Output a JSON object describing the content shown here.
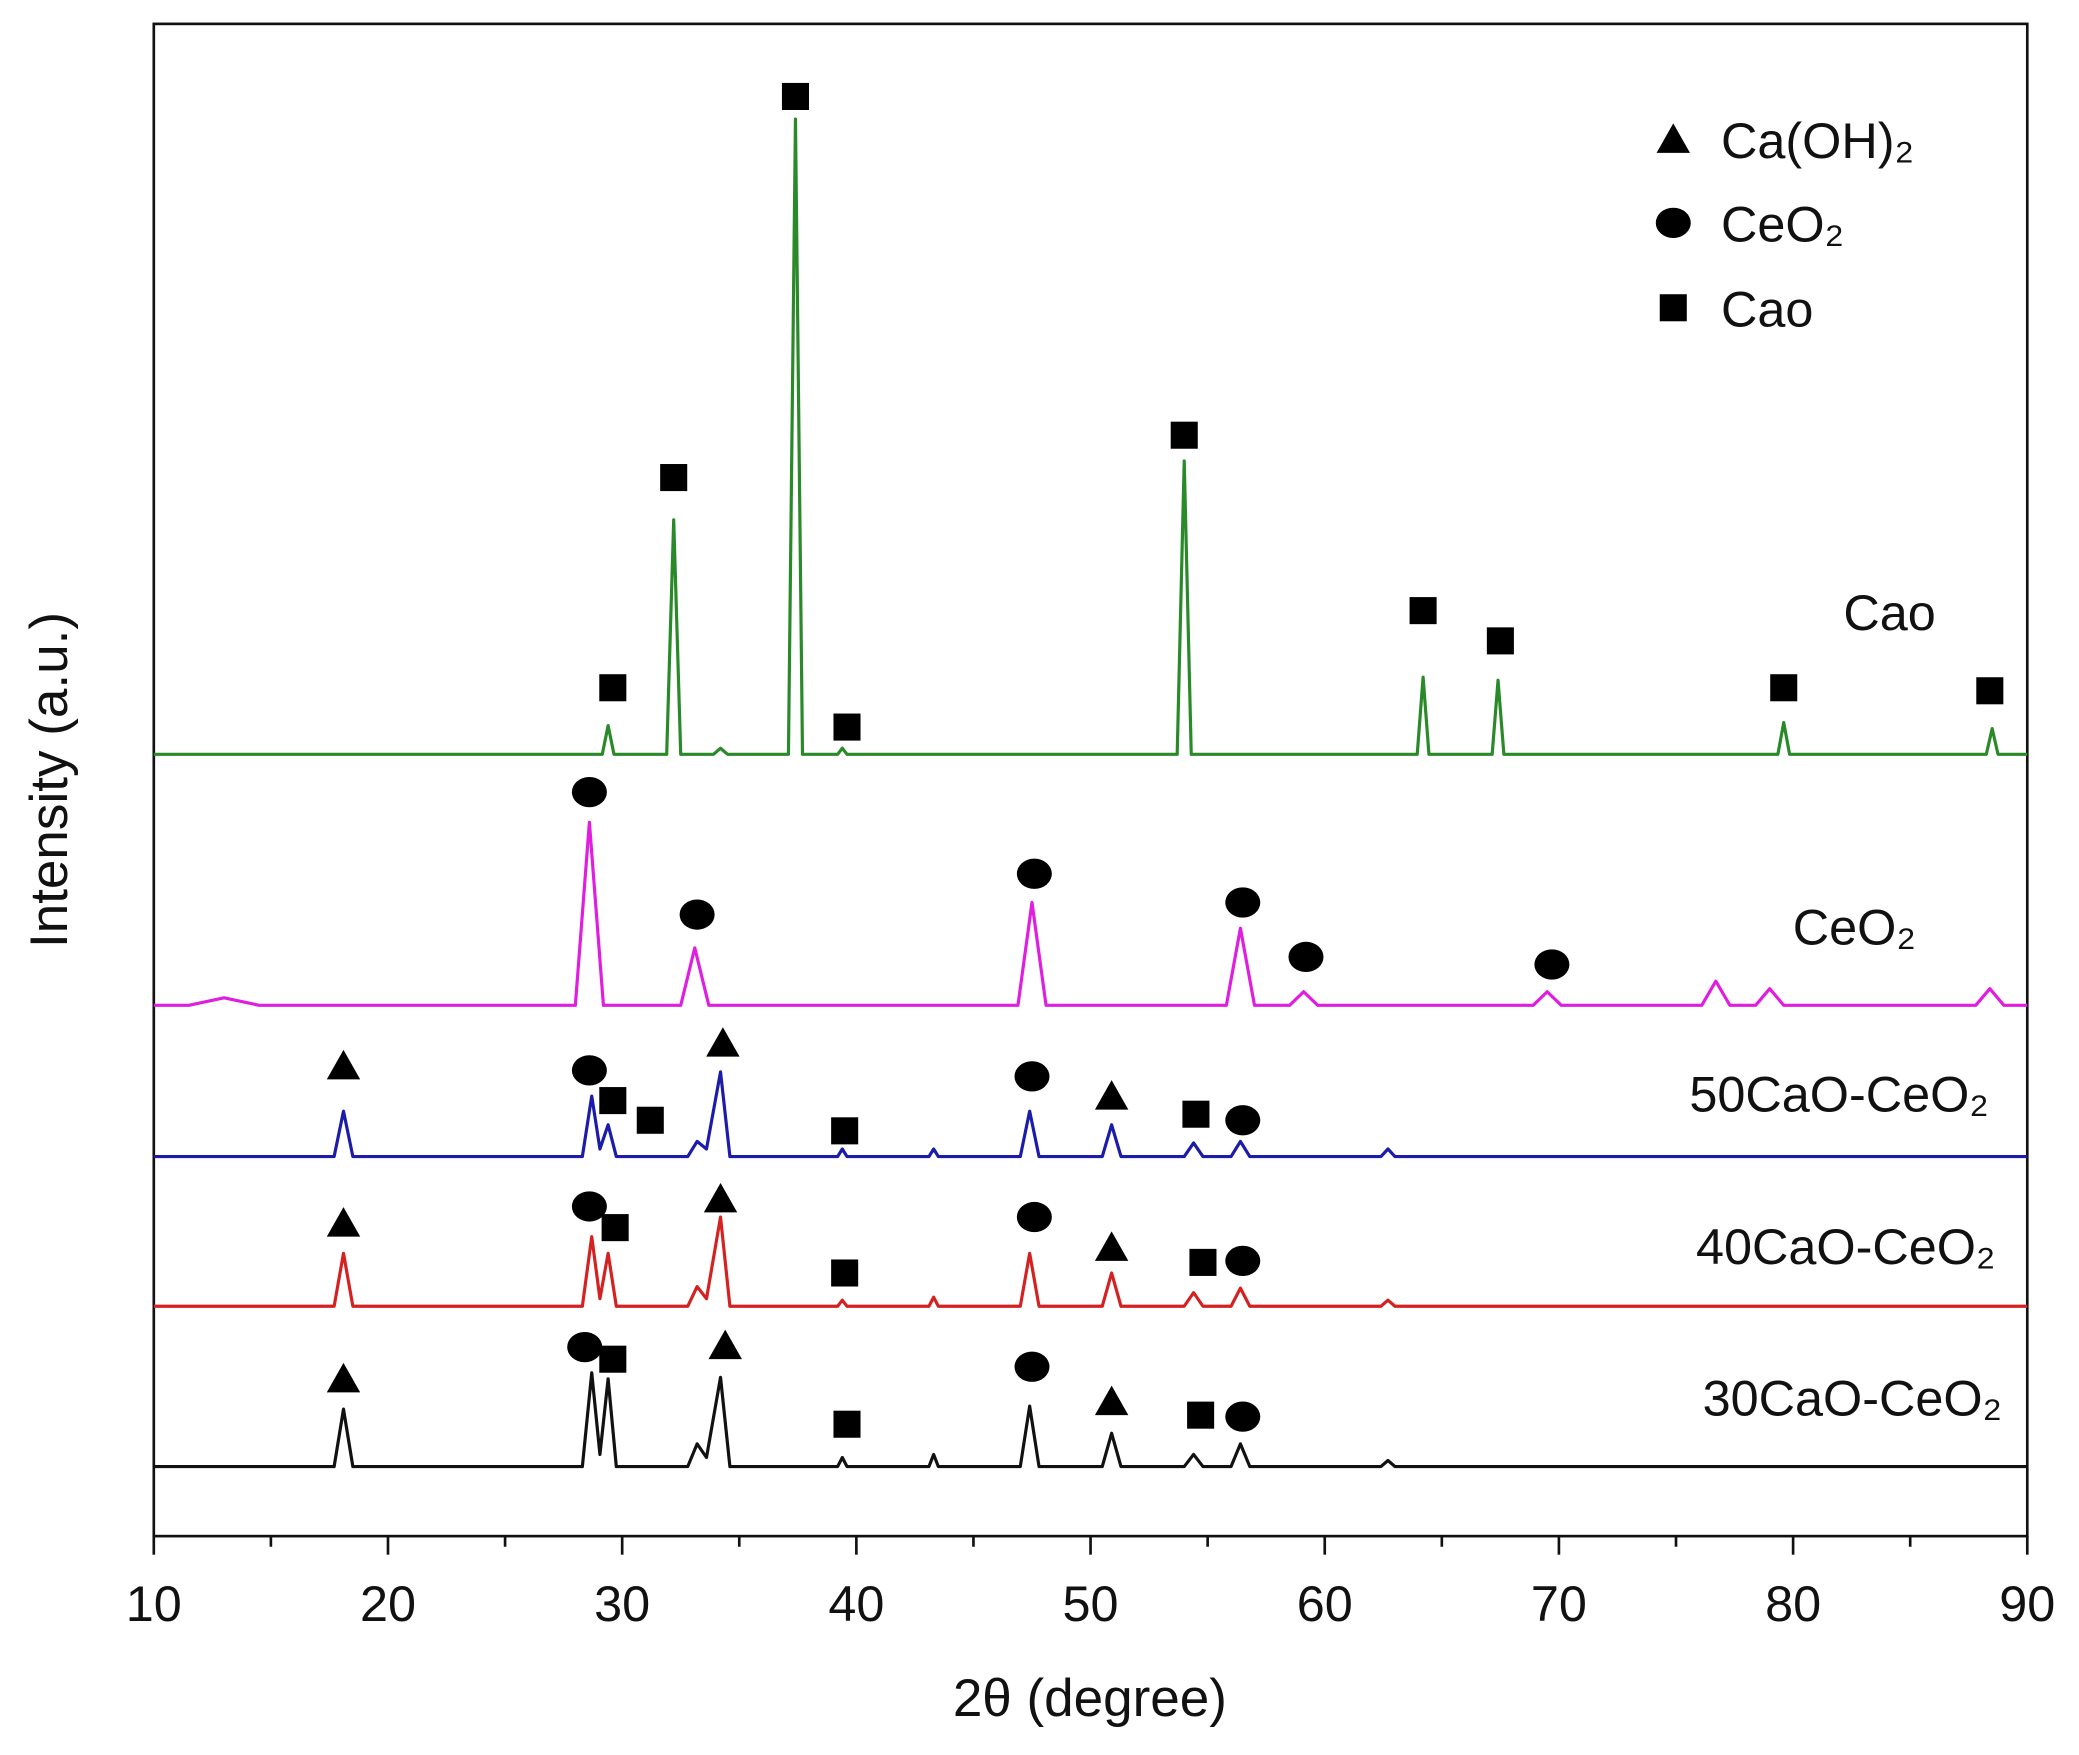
{
  "chart_data": {
    "type": "line",
    "xlabel": "2θ (degree)",
    "ylabel": "Intensity (a.u.)",
    "xlim": [
      10,
      90
    ],
    "xticks": [
      10,
      20,
      30,
      40,
      50,
      60,
      70,
      80,
      90
    ],
    "xminorticks": [
      15,
      25,
      35,
      45,
      55,
      65,
      75,
      85
    ],
    "ylim": [
      0,
      100
    ],
    "series": [
      {
        "name": "Cao",
        "color": "#2a8a2a",
        "x": [
          10,
          29.15,
          29.4,
          29.65,
          31.9,
          32.2,
          32.5,
          33.9,
          34.2,
          34.5,
          37.1,
          37.4,
          37.7,
          39.2,
          39.4,
          39.6,
          53.7,
          54,
          54.3,
          63.95,
          64.2,
          64.45,
          67.15,
          67.4,
          67.65,
          79.35,
          79.6,
          79.85,
          88.25,
          88.5,
          88.75,
          90
        ],
        "values": [
          51.7,
          51.7,
          53.6,
          51.7,
          51.7,
          67.2,
          51.7,
          51.7,
          52.1,
          51.7,
          51.7,
          93.7,
          51.7,
          51.7,
          52.1,
          51.7,
          51.7,
          71.1,
          51.7,
          51.7,
          56.8,
          51.7,
          51.7,
          56.6,
          51.7,
          51.7,
          53.8,
          51.7,
          51.7,
          53.4,
          51.7,
          51.7
        ]
      },
      {
        "name": "CeO₂",
        "color": "#e01ee0",
        "x": [
          10,
          11.5,
          13,
          14.5,
          28.0,
          28.6,
          29.2,
          32.5,
          33.1,
          33.7,
          46.9,
          47.5,
          48.1,
          55.8,
          56.4,
          57.0,
          58.5,
          59.1,
          59.7,
          68.9,
          69.5,
          70.1,
          76.1,
          76.7,
          77.3,
          78.4,
          79.0,
          79.6,
          87.8,
          88.4,
          89.0,
          90
        ],
        "values": [
          35.1,
          35.1,
          35.6,
          35.1,
          35.1,
          47.2,
          35.1,
          35.1,
          38.9,
          35.1,
          35.1,
          41.9,
          35.1,
          35.1,
          40.2,
          35.1,
          35.1,
          36.0,
          35.1,
          35.1,
          36.0,
          35.1,
          35.1,
          36.7,
          35.1,
          35.1,
          36.2,
          35.1,
          35.1,
          36.2,
          35.1,
          35.1
        ]
      },
      {
        "name": "50CaO-CeO₂",
        "color": "#1c1caa",
        "x": [
          10,
          17.7,
          18.1,
          18.5,
          28.3,
          28.7,
          29.05,
          29.4,
          29.75,
          32.8,
          33.2,
          33.6,
          34.2,
          34.6,
          39.2,
          39.4,
          39.6,
          43.1,
          43.3,
          43.5,
          47.0,
          47.4,
          47.8,
          50.5,
          50.9,
          51.3,
          54.0,
          54.4,
          54.8,
          56.0,
          56.4,
          56.8,
          62.4,
          62.7,
          63.0,
          90
        ],
        "values": [
          25.1,
          25.1,
          28.1,
          25.1,
          25.1,
          29.1,
          25.6,
          27.2,
          25.1,
          25.1,
          26.1,
          25.6,
          30.7,
          25.1,
          25.1,
          25.6,
          25.1,
          25.1,
          25.6,
          25.1,
          25.1,
          28.1,
          25.1,
          25.1,
          27.2,
          25.1,
          25.1,
          26.0,
          25.1,
          25.1,
          26.1,
          25.1,
          25.1,
          25.6,
          25.1,
          25.1
        ]
      },
      {
        "name": "40CaO-CeO₂",
        "color": "#d42222",
        "x": [
          10,
          17.7,
          18.1,
          18.5,
          28.3,
          28.7,
          29.05,
          29.4,
          29.75,
          32.8,
          33.2,
          33.6,
          34.2,
          34.6,
          39.2,
          39.4,
          39.6,
          43.1,
          43.3,
          43.5,
          47.0,
          47.4,
          47.8,
          50.5,
          50.9,
          51.3,
          54.0,
          54.4,
          54.8,
          56.0,
          56.4,
          56.8,
          62.4,
          62.7,
          63.0,
          90
        ],
        "values": [
          15.2,
          15.2,
          18.7,
          15.2,
          15.2,
          19.8,
          15.7,
          18.7,
          15.2,
          15.2,
          16.5,
          15.7,
          21.1,
          15.2,
          15.2,
          15.6,
          15.2,
          15.2,
          15.8,
          15.2,
          15.2,
          18.7,
          15.2,
          15.2,
          17.4,
          15.2,
          15.2,
          16.1,
          15.2,
          15.2,
          16.4,
          15.2,
          15.2,
          15.6,
          15.2,
          15.2
        ]
      },
      {
        "name": "30CaO-CeO₂",
        "color": "#111111",
        "x": [
          10,
          17.7,
          18.1,
          18.5,
          28.3,
          28.7,
          29.05,
          29.4,
          29.75,
          32.8,
          33.2,
          33.6,
          34.2,
          34.6,
          39.2,
          39.4,
          39.6,
          43.1,
          43.3,
          43.5,
          47.0,
          47.4,
          47.8,
          50.5,
          50.9,
          51.3,
          54.0,
          54.4,
          54.8,
          56.0,
          56.4,
          56.8,
          62.4,
          62.7,
          63.0,
          90
        ],
        "values": [
          4.6,
          4.6,
          8.4,
          4.6,
          4.6,
          10.8,
          5.4,
          10.4,
          4.6,
          4.6,
          6.1,
          5.2,
          10.5,
          4.6,
          4.6,
          5.2,
          4.6,
          4.6,
          5.4,
          4.6,
          4.6,
          8.6,
          4.6,
          4.6,
          6.8,
          4.6,
          4.6,
          5.4,
          4.6,
          4.6,
          6.1,
          4.6,
          4.6,
          5.0,
          4.6,
          4.6
        ]
      }
    ],
    "phases": [
      {
        "name": "Ca(OH)₂",
        "marker": "triangle"
      },
      {
        "name": "CeO₂",
        "marker": "circle"
      },
      {
        "name": "Cao",
        "marker": "square"
      }
    ],
    "markers": [
      {
        "phase": 2,
        "x": 29.6,
        "y": 56.1
      },
      {
        "phase": 2,
        "x": 32.2,
        "y": 70.0
      },
      {
        "phase": 2,
        "x": 37.4,
        "y": 95.2
      },
      {
        "phase": 2,
        "x": 39.6,
        "y": 53.5
      },
      {
        "phase": 2,
        "x": 54,
        "y": 72.8
      },
      {
        "phase": 2,
        "x": 64.2,
        "y": 61.2
      },
      {
        "phase": 2,
        "x": 67.5,
        "y": 59.2
      },
      {
        "phase": 2,
        "x": 79.6,
        "y": 56.1
      },
      {
        "phase": 2,
        "x": 88.4,
        "y": 55.9
      },
      {
        "phase": 1,
        "x": 28.6,
        "y": 49.2
      },
      {
        "phase": 1,
        "x": 33.2,
        "y": 41.1
      },
      {
        "phase": 1,
        "x": 47.6,
        "y": 43.8
      },
      {
        "phase": 1,
        "x": 56.5,
        "y": 41.9
      },
      {
        "phase": 1,
        "x": 59.2,
        "y": 38.3
      },
      {
        "phase": 1,
        "x": 69.7,
        "y": 37.8
      },
      {
        "phase": 0,
        "x": 18.1,
        "y": 31.1
      },
      {
        "phase": 1,
        "x": 28.6,
        "y": 30.8
      },
      {
        "phase": 2,
        "x": 29.6,
        "y": 28.8
      },
      {
        "phase": 2,
        "x": 31.2,
        "y": 27.5
      },
      {
        "phase": 0,
        "x": 34.3,
        "y": 32.6
      },
      {
        "phase": 2,
        "x": 39.5,
        "y": 26.8
      },
      {
        "phase": 1,
        "x": 47.5,
        "y": 30.4
      },
      {
        "phase": 0,
        "x": 50.9,
        "y": 29.1
      },
      {
        "phase": 2,
        "x": 54.5,
        "y": 27.9
      },
      {
        "phase": 1,
        "x": 56.5,
        "y": 27.5
      },
      {
        "phase": 0,
        "x": 18.1,
        "y": 20.7
      },
      {
        "phase": 1,
        "x": 28.6,
        "y": 21.8
      },
      {
        "phase": 2,
        "x": 29.7,
        "y": 20.4
      },
      {
        "phase": 0,
        "x": 34.2,
        "y": 22.3
      },
      {
        "phase": 2,
        "x": 39.5,
        "y": 17.4
      },
      {
        "phase": 1,
        "x": 47.6,
        "y": 21.1
      },
      {
        "phase": 0,
        "x": 50.9,
        "y": 19.1
      },
      {
        "phase": 2,
        "x": 54.8,
        "y": 18.1
      },
      {
        "phase": 1,
        "x": 56.5,
        "y": 18.2
      },
      {
        "phase": 0,
        "x": 18.1,
        "y": 10.4
      },
      {
        "phase": 1,
        "x": 28.4,
        "y": 12.5
      },
      {
        "phase": 2,
        "x": 29.6,
        "y": 11.7
      },
      {
        "phase": 0,
        "x": 34.4,
        "y": 12.6
      },
      {
        "phase": 2,
        "x": 39.6,
        "y": 7.4
      },
      {
        "phase": 1,
        "x": 47.5,
        "y": 11.2
      },
      {
        "phase": 0,
        "x": 50.9,
        "y": 8.9
      },
      {
        "phase": 2,
        "x": 54.7,
        "y": 8.0
      },
      {
        "phase": 1,
        "x": 56.5,
        "y": 7.9
      }
    ]
  }
}
